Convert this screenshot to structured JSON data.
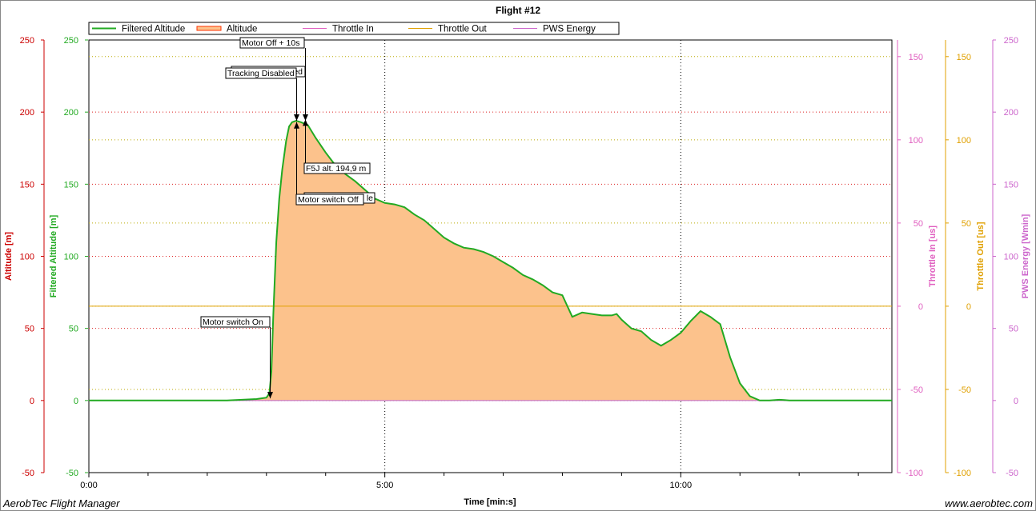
{
  "chart_data": {
    "type": "area",
    "title": "Flight #12",
    "xlabel": "Time [min:s]",
    "x_ticks": [
      "0:00",
      "5:00",
      "10:00"
    ],
    "xlim_seconds": [
      0,
      814
    ],
    "legend_position": "top",
    "footer_left": "AerobTec Flight Manager",
    "footer_right": "www.aerobtec.com",
    "axes": [
      {
        "label": "Altitude [m]",
        "color": "#cc0000",
        "range": [
          -50,
          250
        ],
        "ticks": [
          "-50",
          "0",
          "50",
          "100",
          "150",
          "200",
          "250"
        ]
      },
      {
        "label": "Filtered Altitude [m]",
        "color": "#22aa22",
        "range": [
          -50,
          250
        ],
        "ticks": [
          "-50",
          "0",
          "50",
          "100",
          "150",
          "200",
          "250"
        ]
      },
      {
        "label": "Throttle In [us]",
        "color": "#e060c0",
        "range": [
          -100,
          160
        ],
        "ticks": [
          "-100",
          "-50",
          "0",
          "50",
          "100",
          "150"
        ]
      },
      {
        "label": "Throttle Out [us]",
        "color": "#e0a000",
        "range": [
          -100,
          160
        ],
        "ticks": [
          "-100",
          "-50",
          "0",
          "50",
          "100",
          "150"
        ]
      },
      {
        "label": "PWS Energy [Wmin]",
        "color": "#cc66cc",
        "range": [
          -50,
          250
        ],
        "ticks": [
          "-50",
          "0",
          "50",
          "100",
          "150",
          "200",
          "250"
        ]
      }
    ],
    "series": [
      {
        "name": "Filtered Altitude",
        "color": "#22aa22",
        "axis": "Filtered Altitude [m]",
        "x": [
          0,
          30,
          60,
          90,
          120,
          140,
          170,
          175,
          180,
          183,
          185,
          187,
          190,
          193,
          196,
          200,
          203,
          206,
          210,
          215,
          222,
          230,
          240,
          250,
          260,
          270,
          280,
          290,
          300,
          310,
          320,
          330,
          340,
          350,
          360,
          370,
          380,
          390,
          400,
          410,
          420,
          430,
          440,
          450,
          460,
          470,
          480,
          490,
          500,
          510,
          520,
          530,
          535,
          540,
          550,
          560,
          570,
          580,
          590,
          600,
          610,
          620,
          630,
          640,
          650,
          660,
          670,
          680,
          690,
          700,
          705,
          710,
          720,
          730,
          740,
          750,
          760,
          770,
          780,
          785,
          790,
          795,
          800,
          805,
          814
        ],
        "y": [
          0,
          0,
          0,
          0,
          0,
          0,
          1,
          1.5,
          2,
          5,
          20,
          60,
          110,
          140,
          160,
          180,
          190,
          193,
          194,
          193,
          191,
          182,
          172,
          163,
          157,
          152,
          146,
          140,
          137,
          136,
          134,
          129,
          125,
          119,
          113,
          109,
          106,
          105,
          103,
          100,
          96,
          92,
          87,
          84,
          80,
          75,
          73,
          58,
          61,
          60,
          59,
          59,
          60,
          56,
          50,
          48,
          42,
          38,
          42,
          47,
          55,
          62,
          58,
          53,
          30,
          12,
          3,
          0,
          0,
          0.5,
          0.3,
          0,
          0,
          0,
          0,
          0,
          0,
          0,
          0,
          0,
          0,
          0,
          0,
          0,
          0
        ]
      },
      {
        "name": "Altitude",
        "color": "#ff6600",
        "axis": "Altitude [m]"
      },
      {
        "name": "Throttle In",
        "color": "#e060c0",
        "axis": "Throttle In [us]",
        "x": [
          0,
          814
        ],
        "y": [
          0,
          0
        ]
      },
      {
        "name": "Throttle Out",
        "color": "#e0a000",
        "axis": "Throttle Out [us]",
        "x": [
          0,
          814
        ],
        "y": [
          0,
          0
        ]
      },
      {
        "name": "PWS Energy",
        "color": "#cc66cc",
        "axis": "PWS Energy [Wmin]",
        "x": [
          0,
          814
        ],
        "y": [
          0,
          0
        ]
      }
    ],
    "annotations": [
      {
        "text": "Motor switch On",
        "x": 184,
        "y": 1.5
      },
      {
        "text": "Tracking Disabled",
        "x": 210,
        "y": 194
      },
      {
        "text": "Motor Off + 10s",
        "x": 218,
        "y": 194
      },
      {
        "text": "F5J alt. 194,9 m",
        "x": 218,
        "y": 194.9
      },
      {
        "text": "Motor switch Off",
        "x": 210,
        "y": 193
      }
    ]
  }
}
